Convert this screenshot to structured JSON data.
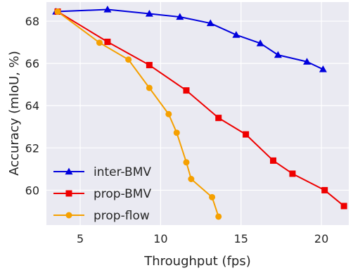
{
  "chart_data": {
    "type": "line",
    "xlabel": "Throughput (fps)",
    "ylabel": "Accuracy (mIoU, %)",
    "xlim": [
      2.9,
      21.7
    ],
    "ylim": [
      58.35,
      68.9
    ],
    "xticks": [
      5,
      10,
      15,
      20
    ],
    "yticks": [
      60,
      62,
      64,
      66,
      68
    ],
    "grid": true,
    "legend_position": "bottom-left",
    "series": [
      {
        "name": "inter-BMV",
        "color": "#0000dd",
        "marker": "triangle",
        "x": [
          3.5,
          6.7,
          9.3,
          11.2,
          13.1,
          14.7,
          16.2,
          17.3,
          19.1,
          20.1
        ],
        "y": [
          68.45,
          68.55,
          68.35,
          68.2,
          67.9,
          67.35,
          66.95,
          66.4,
          66.08,
          65.72
        ]
      },
      {
        "name": "prop-BMV",
        "color": "#ee0000",
        "marker": "square",
        "x": [
          3.6,
          6.7,
          9.3,
          11.6,
          13.6,
          15.3,
          17.0,
          18.2,
          20.2,
          21.4
        ],
        "y": [
          68.45,
          67.02,
          65.92,
          64.72,
          63.42,
          62.64,
          61.4,
          60.78,
          60.0,
          59.25
        ]
      },
      {
        "name": "prop-flow",
        "color": "#f5a000",
        "marker": "circle",
        "x": [
          3.6,
          6.2,
          8.0,
          9.3,
          10.5,
          11.0,
          11.6,
          11.9,
          13.2,
          13.6
        ],
        "y": [
          68.45,
          66.98,
          66.18,
          64.84,
          63.6,
          62.72,
          61.32,
          60.53,
          59.67,
          58.75
        ]
      }
    ]
  }
}
